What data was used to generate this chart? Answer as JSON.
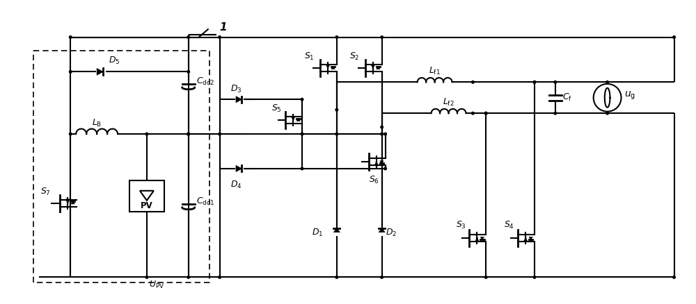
{
  "figsize": [
    10.0,
    4.39
  ],
  "dpi": 100,
  "lw": 1.5,
  "lw_thick": 2.0,
  "fs": 9,
  "dot_r": 0.18
}
